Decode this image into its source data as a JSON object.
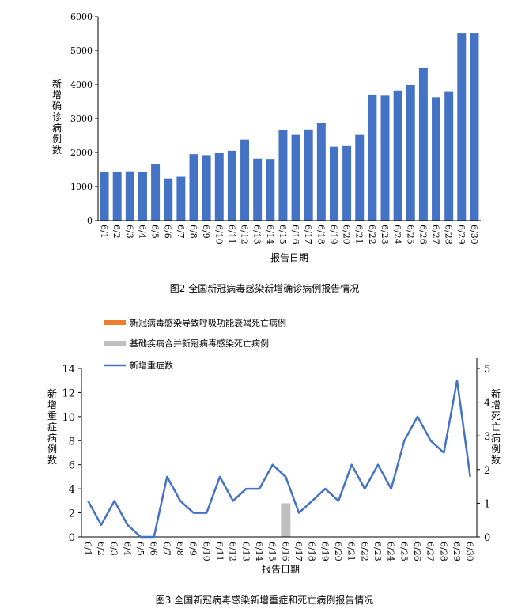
{
  "chart_data": [
    {
      "type": "bar",
      "categories": [
        "6/1",
        "6/2",
        "6/3",
        "6/4",
        "6/5",
        "6/6",
        "6/7",
        "6/8",
        "6/9",
        "6/10",
        "6/11",
        "6/12",
        "6/13",
        "6/14",
        "6/15",
        "6/16",
        "6/17",
        "6/18",
        "6/19",
        "6/20",
        "6/21",
        "6/22",
        "6/23",
        "6/24",
        "6/25",
        "6/26",
        "6/27",
        "6/28",
        "6/29",
        "6/30"
      ],
      "values": [
        1420,
        1440,
        1450,
        1440,
        1650,
        1240,
        1290,
        1950,
        1920,
        2000,
        2050,
        2380,
        1820,
        1810,
        2670,
        2520,
        2680,
        2870,
        2170,
        2190,
        2520,
        3700,
        3690,
        3820,
        3990,
        4490,
        3620,
        3800,
        5510,
        5510
      ],
      "title": "图2  全国新冠病毒感染新增确诊病例报告情况",
      "xlabel": "报告日期",
      "ylabel": "新增确诊病例数",
      "ylim": [
        0,
        6000
      ],
      "yticks": [
        "0",
        "1000",
        "2000",
        "3000",
        "4000",
        "5000",
        "6000"
      ],
      "color": "#4472C4",
      "grid": false
    },
    {
      "type": "line",
      "categories": [
        "6/1",
        "6/2",
        "6/3",
        "6/4",
        "6/5",
        "6/6",
        "6/7",
        "6/8",
        "6/9",
        "6/10",
        "6/11",
        "6/12",
        "6/13",
        "6/14",
        "6/15",
        "6/16",
        "6/17",
        "6/18",
        "6/19",
        "6/20",
        "6/21",
        "6/22",
        "6/23",
        "6/24",
        "6/25",
        "6/26",
        "6/27",
        "6/28",
        "6/29",
        "6/30"
      ],
      "title": "图3  全国新冠病毒感染新增重症和死亡病例报告情况",
      "xlabel": "报告日期",
      "ylabel": "新增重症病例数",
      "y2label": "新增死亡病例数",
      "ylim": [
        0,
        14
      ],
      "y2lim": [
        0,
        5
      ],
      "yticks": [
        "0",
        "2",
        "4",
        "6",
        "8",
        "10",
        "12",
        "14"
      ],
      "y2ticks": [
        "0",
        "1",
        "2",
        "3",
        "4",
        "5"
      ],
      "legend_position": "top-left",
      "grid": false,
      "series": [
        {
          "name": "新冠病毒感染导致呼吸功能衰竭死亡病例",
          "type": "bar",
          "axis": "right",
          "color": "#ED7D31",
          "values": [
            0,
            0,
            0,
            0,
            0,
            0,
            0,
            0,
            0,
            0,
            0,
            0,
            0,
            0,
            0,
            0,
            0,
            0,
            0,
            0,
            0,
            0,
            0,
            0,
            0,
            0,
            0,
            0,
            0,
            0
          ]
        },
        {
          "name": "基础疾病合并新冠病毒感染死亡病例",
          "type": "bar",
          "axis": "right",
          "color": "#BFBFBF",
          "values": [
            0,
            0,
            0,
            0,
            0,
            0,
            0,
            0,
            0,
            0,
            0,
            0,
            0,
            0,
            0,
            1,
            0,
            0,
            0,
            0,
            0,
            0,
            0,
            0,
            0,
            0,
            0,
            0,
            0,
            0
          ]
        },
        {
          "name": "新增重症数",
          "type": "line",
          "axis": "left",
          "color": "#4472C4",
          "values": [
            3,
            1,
            3,
            1,
            0,
            0,
            5,
            3,
            2,
            2,
            5,
            3,
            4,
            4,
            6,
            5,
            2,
            3,
            4,
            3,
            6,
            4,
            6,
            4,
            8,
            10,
            8,
            7,
            13,
            5
          ]
        }
      ]
    }
  ]
}
